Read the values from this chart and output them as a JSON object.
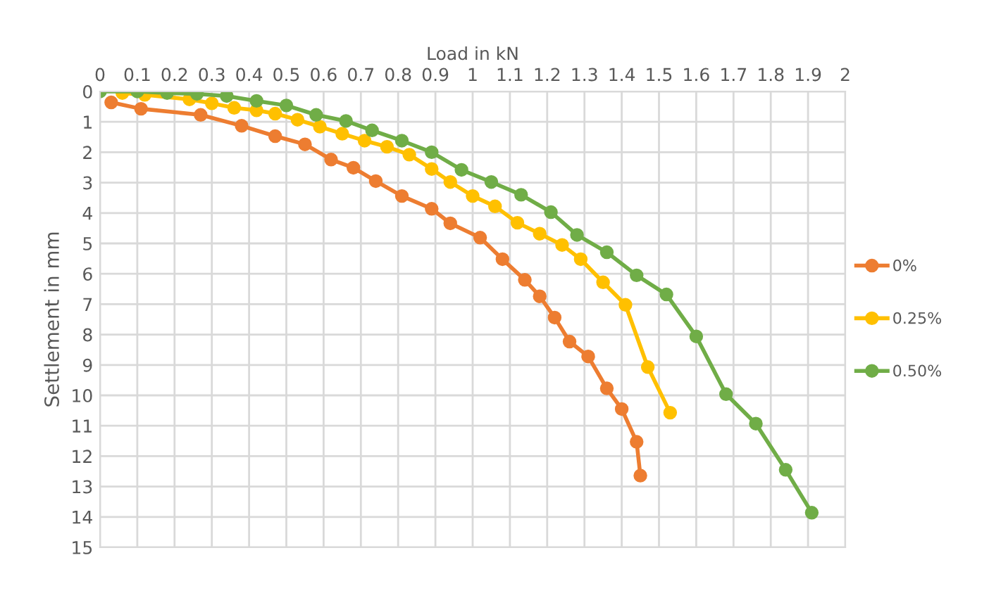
{
  "chart_data": {
    "type": "line",
    "xlabel": "Load in kN",
    "ylabel": "Settlement in mm",
    "xlim": [
      0,
      2
    ],
    "xticks": [
      0,
      0.1,
      0.2,
      0.3,
      0.4,
      0.5,
      0.6,
      0.7,
      0.8,
      0.9,
      1,
      1.1,
      1.2,
      1.3,
      1.4,
      1.5,
      1.6,
      1.7,
      1.8,
      1.9,
      2
    ],
    "ylim": [
      15,
      0
    ],
    "yticks": [
      0,
      1,
      2,
      3,
      4,
      5,
      6,
      7,
      8,
      9,
      10,
      11,
      12,
      13,
      14,
      15
    ],
    "grid": true,
    "legend": "right",
    "marker": "circle",
    "line_style": "solid",
    "series": [
      {
        "name": "0%",
        "color": "#ed7d31",
        "x": [
          0.03,
          0.11,
          0.27,
          0.38,
          0.47,
          0.55,
          0.62,
          0.68,
          0.74,
          0.81,
          0.89,
          0.94,
          1.02,
          1.08,
          1.14,
          1.18,
          1.22,
          1.26,
          1.31,
          1.36,
          1.4,
          1.44,
          1.45
        ],
        "values": [
          0.36,
          0.57,
          0.77,
          1.13,
          1.47,
          1.74,
          2.24,
          2.51,
          2.95,
          3.44,
          3.86,
          4.34,
          4.81,
          5.52,
          6.2,
          6.74,
          7.44,
          8.23,
          8.72,
          9.77,
          10.45,
          11.53,
          12.64
        ]
      },
      {
        "name": "0.25%",
        "color": "#ffc000",
        "x": [
          0.06,
          0.12,
          0.24,
          0.3,
          0.36,
          0.42,
          0.47,
          0.53,
          0.59,
          0.65,
          0.71,
          0.77,
          0.83,
          0.89,
          0.94,
          1.0,
          1.06,
          1.12,
          1.18,
          1.24,
          1.29,
          1.35,
          1.41,
          1.47,
          1.53
        ],
        "values": [
          0.05,
          0.11,
          0.26,
          0.39,
          0.54,
          0.62,
          0.73,
          0.93,
          1.16,
          1.39,
          1.62,
          1.82,
          2.08,
          2.55,
          2.98,
          3.44,
          3.78,
          4.32,
          4.68,
          5.05,
          5.52,
          6.28,
          7.02,
          9.07,
          10.57
        ]
      },
      {
        "name": "0.50%",
        "color": "#70ad47",
        "x": [
          0,
          0.1,
          0.18,
          0.26,
          0.34,
          0.42,
          0.5,
          0.58,
          0.66,
          0.73,
          0.81,
          0.89,
          0.97,
          1.05,
          1.13,
          1.21,
          1.28,
          1.36,
          1.44,
          1.52,
          1.6,
          1.68,
          1.76,
          1.84,
          1.91
        ],
        "values": [
          0,
          0,
          0.05,
          0.08,
          0.15,
          0.31,
          0.46,
          0.77,
          0.97,
          1.28,
          1.62,
          2.0,
          2.58,
          2.98,
          3.4,
          3.97,
          4.72,
          5.29,
          6.05,
          6.68,
          8.06,
          9.96,
          10.93,
          12.45,
          13.86
        ]
      }
    ]
  }
}
